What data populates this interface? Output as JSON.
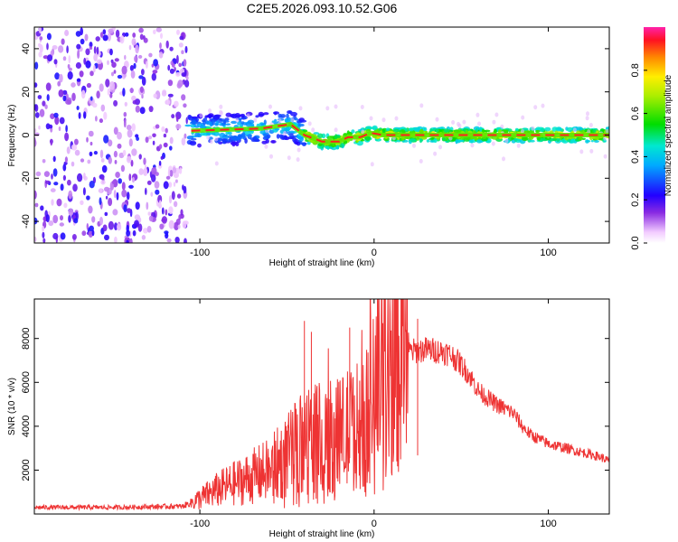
{
  "title": "C2E5.2026.093.10.52.G06",
  "chart_data": [
    {
      "type": "heatmap",
      "title": "C2E5.2026.093.10.52.G06",
      "xlabel": "Height of straight line (km)",
      "ylabel": "Frequency (Hz)",
      "xlim": [
        -195,
        135
      ],
      "ylim": [
        -50,
        50
      ],
      "xticks": [
        -100,
        0,
        100
      ],
      "yticks": [
        -40,
        -20,
        0,
        20,
        40
      ],
      "colorbar": {
        "label": "Normalized spectral amplitude",
        "range": [
          0,
          1
        ],
        "ticks": [
          0.0,
          0.2,
          0.4,
          0.6,
          0.8
        ]
      },
      "regions": [
        {
          "x_range": [
            -195,
            -107
          ],
          "description": "diffuse noise across all frequencies",
          "amplitude": [
            0.05,
            0.25
          ]
        },
        {
          "x_range": [
            -107,
            -40
          ],
          "center_freq": 2,
          "half_width": 7,
          "amplitude": [
            0.2,
            0.5
          ]
        },
        {
          "x_range": [
            -40,
            20
          ],
          "center_freq": -1,
          "half_width": 3,
          "amplitude": [
            0.4,
            0.95
          ]
        },
        {
          "x_range": [
            20,
            135
          ],
          "center_freq": 0,
          "half_width": 3,
          "amplitude": [
            0.4,
            0.9
          ]
        }
      ],
      "line_segments": [
        {
          "x": [
            -105,
            -65,
            -48,
            -40,
            -30,
            -20,
            -15,
            -8,
            -2,
            5,
            15,
            50,
            110,
            135
          ],
          "freq": [
            2,
            3,
            5,
            0,
            -3,
            -3,
            -1,
            -1,
            1,
            0,
            0,
            0,
            0,
            0
          ]
        }
      ]
    },
    {
      "type": "line",
      "xlabel": "Height of straight line (km)",
      "ylabel": "SNR (10 * v/v)",
      "xlim": [
        -195,
        135
      ],
      "ylim": [
        0,
        9800
      ],
      "xticks": [
        -100,
        0,
        100
      ],
      "yticks": [
        2000,
        4000,
        6000,
        8000
      ],
      "series": [
        {
          "name": "SNR",
          "color": "#ee3333",
          "x": [
            -195,
            -150,
            -110,
            -100,
            -90,
            -80,
            -70,
            -60,
            -50,
            -40,
            -35,
            -30,
            -20,
            -10,
            -5,
            0,
            10,
            20,
            30,
            40,
            45,
            50,
            55,
            60,
            70,
            80,
            85,
            90,
            100,
            110,
            120,
            130,
            135
          ],
          "y": [
            300,
            300,
            350,
            700,
            1100,
            1400,
            1700,
            2000,
            2600,
            3300,
            3600,
            3400,
            3600,
            4000,
            4500,
            5500,
            6500,
            7400,
            7500,
            7400,
            7200,
            6800,
            6300,
            5600,
            5000,
            4600,
            4000,
            3600,
            3200,
            3000,
            2800,
            2600,
            2400
          ]
        }
      ],
      "spikes": [
        {
          "x": -40,
          "y": 8800
        },
        {
          "x": -36,
          "y": 8300
        },
        {
          "x": -14,
          "y": 8500
        },
        {
          "x": 2,
          "y": 9700
        },
        {
          "x": 25,
          "y": 8900
        }
      ]
    }
  ]
}
